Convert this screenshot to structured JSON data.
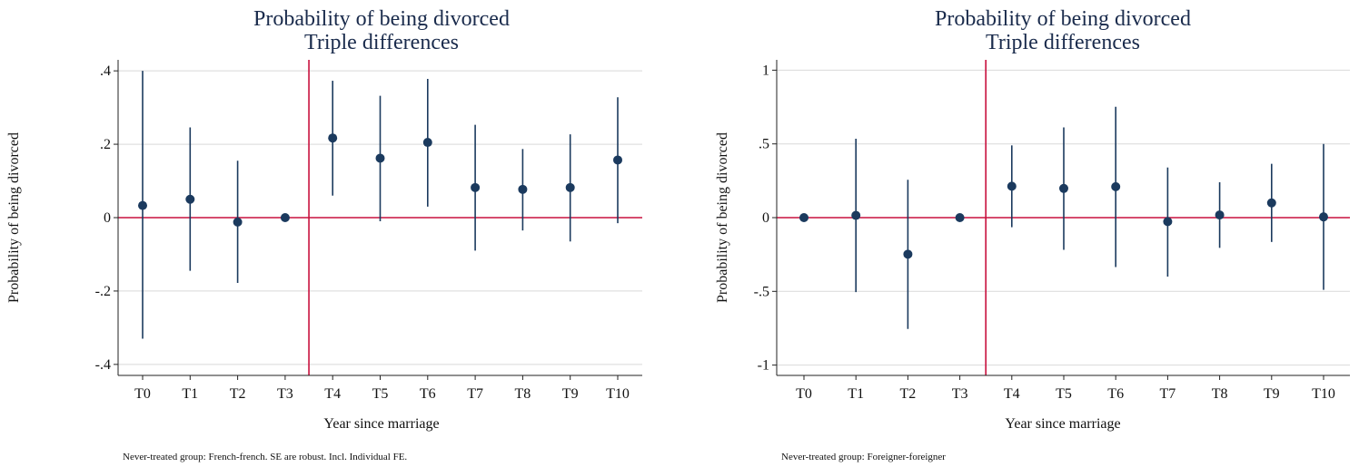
{
  "chart_data": [
    {
      "type": "scatter",
      "title": [
        "Probability of being divorced",
        "Triple differences"
      ],
      "xlabel": "Year since marriage",
      "ylabel": "Probability of being divorced",
      "categories": [
        "T0",
        "T1",
        "T2",
        "T3",
        "T4",
        "T5",
        "T6",
        "T7",
        "T8",
        "T9",
        "T10"
      ],
      "values": [
        0.033,
        0.05,
        -0.012,
        0.0,
        0.217,
        0.162,
        0.205,
        0.082,
        0.077,
        0.082,
        0.157
      ],
      "ci_low": [
        -0.33,
        -0.145,
        -0.178,
        0.0,
        0.06,
        -0.01,
        0.03,
        -0.09,
        -0.035,
        -0.065,
        -0.015
      ],
      "ci_high": [
        0.4,
        0.246,
        0.155,
        0.0,
        0.373,
        0.332,
        0.378,
        0.253,
        0.187,
        0.227,
        0.328
      ],
      "ylim": [
        -0.43,
        0.43
      ],
      "yticks": [
        -0.4,
        -0.2,
        0,
        0.2,
        0.4
      ],
      "ytick_labels": [
        "-.4",
        "-.2",
        "0",
        ".2",
        ".4"
      ],
      "vline_between": [
        "T3",
        "T4"
      ],
      "hline": 0,
      "grid": true,
      "note": "Never-treated group: French-french. SE are robust. Incl. Individual FE.",
      "colors": {
        "marker": "#1b3a5e",
        "reference": "#c8103e",
        "title": "#1a2b4c"
      }
    },
    {
      "type": "scatter",
      "title": [
        "Probability of being divorced",
        "Triple differences"
      ],
      "xlabel": "Year since marriage",
      "ylabel": "Probability of being divorced",
      "categories": [
        "T0",
        "T1",
        "T2",
        "T3",
        "T4",
        "T5",
        "T6",
        "T7",
        "T8",
        "T9",
        "T10"
      ],
      "values": [
        0.0,
        0.015,
        -0.248,
        0.0,
        0.213,
        0.198,
        0.21,
        -0.027,
        0.018,
        0.1,
        0.005
      ],
      "ci_low": [
        0.0,
        -0.505,
        -0.755,
        0.0,
        -0.065,
        -0.218,
        -0.335,
        -0.4,
        -0.205,
        -0.165,
        -0.49
      ],
      "ci_high": [
        0.0,
        0.535,
        0.257,
        0.0,
        0.49,
        0.612,
        0.752,
        0.34,
        0.24,
        0.365,
        0.5
      ],
      "ylim": [
        -1.07,
        1.07
      ],
      "yticks": [
        -1,
        -0.5,
        0,
        0.5,
        1
      ],
      "ytick_labels": [
        "-1",
        "-.5",
        "0",
        ".5",
        "1"
      ],
      "vline_between": [
        "T3",
        "T4"
      ],
      "hline": 0,
      "grid": true,
      "note": "Never-treated group: Foreigner-foreigner",
      "colors": {
        "marker": "#1b3a5e",
        "reference": "#c8103e",
        "title": "#1a2b4c"
      }
    }
  ]
}
